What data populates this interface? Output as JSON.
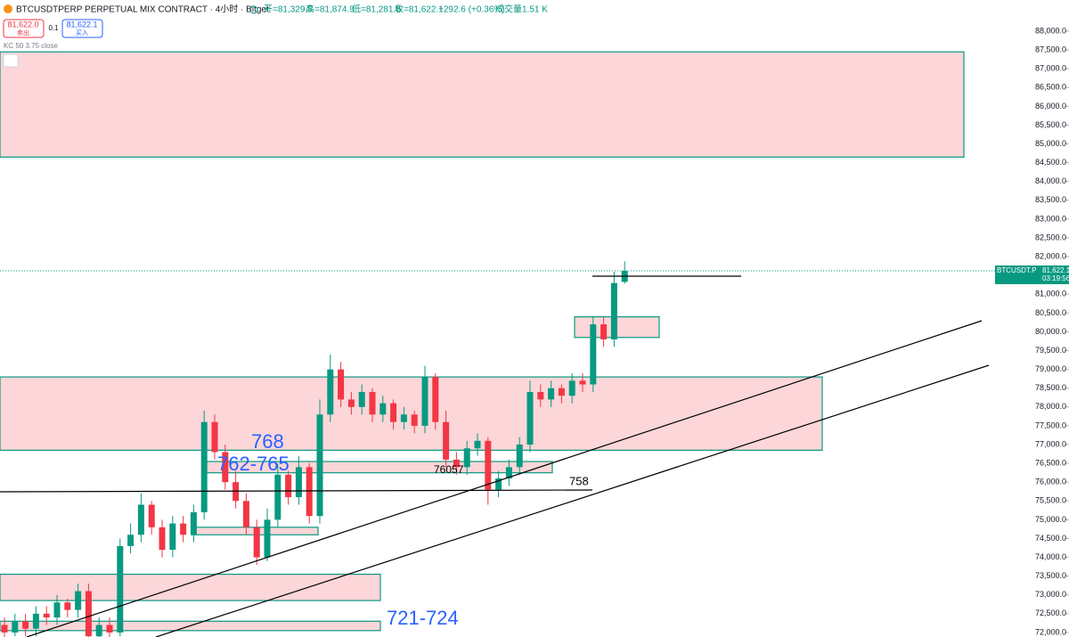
{
  "header": {
    "symbol": "BTCUSDTPERP PERPETUAL MIX CONTRACT · 4小时 · Bitget",
    "ohlc": [
      "开=81,329.5",
      "高=81,874.9",
      "低=81,281.5",
      "收=81,622.1",
      "+292.6 (+0.36%)",
      "成交量1.51 K"
    ],
    "sell_price": "81,622.0",
    "sell_label": "卖出",
    "qty": "0.1",
    "buy_price": "81,622.1",
    "buy_label": "买入",
    "indicator": "KC 50 3.75 close"
  },
  "price_tag": {
    "symbol": "BTCUSDT.P",
    "price": "81,622.1",
    "countdown": "03:19:56"
  },
  "annotations": [
    "768",
    "762-765",
    "76057",
    "758",
    "721-724"
  ],
  "chart_data": {
    "type": "candlestick",
    "up_color": "#089981",
    "down_color": "#f23645",
    "open": [
      72200,
      72000,
      72300,
      72100,
      72500,
      72400,
      72800,
      72600,
      73100,
      71900,
      72200,
      72000,
      74300,
      74600,
      75400,
      74800,
      74200,
      74900,
      74600,
      75200,
      77600,
      76800,
      76000,
      75500,
      74800,
      74000,
      75000,
      76200,
      75600,
      76400,
      75100,
      77800,
      79000,
      78200,
      78000,
      78400,
      77800,
      78100,
      77600,
      77800,
      77500,
      78800,
      77600,
      76600,
      76400,
      76900,
      77100,
      75800,
      76100,
      76400,
      77000,
      78400,
      78200,
      78500,
      78300,
      78700,
      78600,
      80200,
      79800,
      81329.5
    ],
    "high": [
      72400,
      72500,
      72500,
      72700,
      72700,
      73000,
      72900,
      73300,
      73300,
      72400,
      72400,
      74500,
      74900,
      75700,
      75500,
      75000,
      75100,
      75100,
      75400,
      77900,
      77800,
      77000,
      76300,
      75700,
      75000,
      75300,
      76500,
      76300,
      76700,
      76500,
      78200,
      79400,
      79200,
      78400,
      78600,
      78500,
      78300,
      78200,
      78000,
      77900,
      79100,
      78900,
      77900,
      76800,
      77100,
      77300,
      77200,
      76300,
      76600,
      77200,
      78700,
      78600,
      78700,
      78600,
      78900,
      78900,
      80400,
      80400,
      81600,
      81874.9
    ],
    "low": [
      71800,
      71900,
      71900,
      71900,
      72200,
      72200,
      72400,
      72400,
      71700,
      71700,
      71800,
      71900,
      74100,
      74400,
      74600,
      74000,
      74000,
      74400,
      74400,
      75000,
      76600,
      75800,
      75300,
      74600,
      73800,
      73900,
      74800,
      75400,
      75400,
      74900,
      74900,
      77600,
      78000,
      77800,
      77800,
      77600,
      77600,
      77400,
      77400,
      77300,
      77300,
      77400,
      76400,
      76200,
      76200,
      76700,
      75400,
      75600,
      75900,
      76200,
      76800,
      78000,
      78000,
      78100,
      78100,
      78400,
      78400,
      79600,
      79600,
      81281.5
    ],
    "close": [
      72000,
      72300,
      72100,
      72500,
      72400,
      72800,
      72600,
      73100,
      71900,
      72200,
      72000,
      74300,
      74600,
      75400,
      74800,
      74200,
      74900,
      74600,
      75200,
      77600,
      76800,
      76000,
      75500,
      74800,
      74000,
      75000,
      76200,
      75600,
      76400,
      75100,
      77800,
      79000,
      78200,
      78000,
      78400,
      77800,
      78100,
      77600,
      77800,
      77500,
      78800,
      77600,
      76600,
      76400,
      76900,
      77100,
      75800,
      76100,
      76400,
      77000,
      78400,
      78200,
      78500,
      78300,
      78700,
      78600,
      80200,
      79800,
      81300,
      81622.1
    ],
    "zones": [
      {
        "top": 87450,
        "bottom": 84650
      },
      {
        "top": 78800,
        "bottom": 76850
      },
      {
        "top": 76550,
        "bottom": 76250
      },
      {
        "top": 80400,
        "bottom": 79850
      },
      {
        "top": 74800,
        "bottom": 74600
      },
      {
        "top": 73550,
        "bottom": 72850
      },
      {
        "top": 72300,
        "bottom": 72050
      }
    ],
    "zone_color": "#fcd6d8",
    "zone_border": "#089981",
    "ylim": [
      71880,
      88830
    ],
    "yticks": [
      {
        "value": 72000,
        "label": "72,000.0"
      },
      {
        "value": 72500,
        "label": "72,500.0"
      },
      {
        "value": 73000,
        "label": "73,000.0"
      },
      {
        "value": 73500,
        "label": "73,500.0"
      },
      {
        "value": 74000,
        "label": "74,000.0"
      },
      {
        "value": 74500,
        "label": "74,500.0"
      },
      {
        "value": 75000,
        "label": "75,000.0"
      },
      {
        "value": 75500,
        "label": "75,500.0"
      },
      {
        "value": 76000,
        "label": "76,000.0"
      },
      {
        "value": 76500,
        "label": "76,500.0"
      },
      {
        "value": 77000,
        "label": "77,000.0"
      },
      {
        "value": 77500,
        "label": "77,500.0"
      },
      {
        "value": 78000,
        "label": "78,000.0"
      },
      {
        "value": 78500,
        "label": "78,500.0"
      },
      {
        "value": 79000,
        "label": "79,000.0"
      },
      {
        "value": 79500,
        "label": "79,500.0"
      },
      {
        "value": 80000,
        "label": "80,000.0"
      },
      {
        "value": 80500,
        "label": "80,500.0"
      },
      {
        "value": 81000,
        "label": "81,000.0"
      },
      {
        "value": 81500,
        "label": "81,500.0"
      },
      {
        "value": 82000,
        "label": "82,000.0"
      },
      {
        "value": 82500,
        "label": "82,500.0"
      },
      {
        "value": 83000,
        "label": "83,000.0"
      },
      {
        "value": 83500,
        "label": "83,500.0"
      },
      {
        "value": 84000,
        "label": "84,000.0"
      },
      {
        "value": 84500,
        "label": "84,500.0"
      },
      {
        "value": 85000,
        "label": "85,000.0"
      },
      {
        "value": 85500,
        "label": "85,500.0"
      },
      {
        "value": 86000,
        "label": "86,000.0"
      },
      {
        "value": 86500,
        "label": "86,500.0"
      },
      {
        "value": 87000,
        "label": "87,000.0"
      },
      {
        "value": 87500,
        "label": "87,500.0"
      },
      {
        "value": 88000,
        "label": "88,000.0"
      }
    ]
  }
}
